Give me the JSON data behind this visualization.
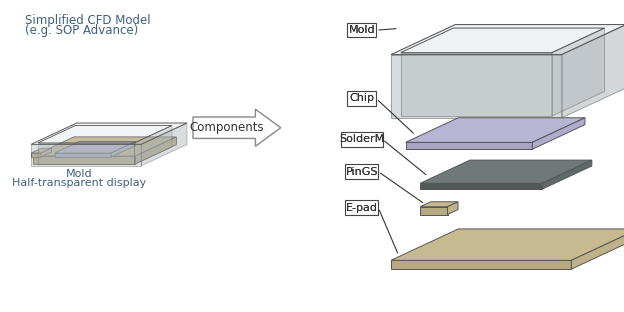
{
  "title_line1": "Simplified CFD Model",
  "title_line2": "(e.g. SOP Advance)",
  "left_label1": "Mold",
  "left_label2": "Half-transparent display",
  "arrow_label": "Components",
  "component_labels": [
    "Mold",
    "Chip",
    "SolderM",
    "PinGS",
    "E-pad"
  ],
  "bg_color": "#ffffff",
  "mold_top_color": "#c0c8cc",
  "mold_left_color": "#b0b8bc",
  "mold_right_color": "#a8b0b4",
  "mold_alpha": 0.45,
  "chip_top_color": "#b8b4d4",
  "chip_left_color": "#a8a4c4",
  "chip_right_color": "#b0acd0",
  "epad_top_color": "#c8ba90",
  "epad_left_color": "#b8aa80",
  "epad_right_color": "#c0b288",
  "solder_top_color": "#707878",
  "solder_left_color": "#505858",
  "solder_right_color": "#606868",
  "pin_top_color": "#c8ba90",
  "pin_left_color": "#b8aa80",
  "pin_right_color": "#c0b288",
  "title_color": "#406080",
  "label_color": "#406070",
  "text_color": "#333333",
  "edge_color": "#555555",
  "label_edge_color": "#444444"
}
